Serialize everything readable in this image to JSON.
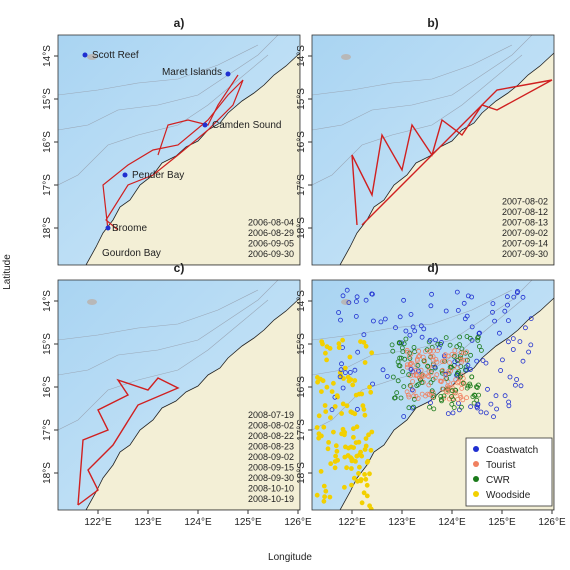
{
  "axes": {
    "x_label": "Longitude",
    "y_label": "Latitude",
    "x_ticks": [
      "122°E",
      "123°E",
      "124°E",
      "125°E",
      "126°E"
    ],
    "y_ticks": [
      "14°S",
      "15°S",
      "16°S",
      "17°S",
      "18°S"
    ]
  },
  "panels": [
    {
      "title": "a)",
      "places": [
        "Scott Reef",
        "Maret Islands",
        "Camden Sound",
        "Pender Bay",
        "Broome",
        "Gourdon Bay"
      ],
      "dates": [
        "2006-08-04",
        "2006-08-29",
        "2006-09-05",
        "2006-09-30"
      ]
    },
    {
      "title": "b)",
      "dates": [
        "2007-08-02",
        "2007-08-12",
        "2007-08-13",
        "2007-09-02",
        "2007-09-14",
        "2007-09-30"
      ]
    },
    {
      "title": "c)",
      "dates": [
        "2008-07-19",
        "2008-08-02",
        "2008-08-22",
        "2008-08-23",
        "2008-09-02",
        "2008-09-15",
        "2008-09-30",
        "2008-10-10",
        "2008-10-19"
      ]
    },
    {
      "title": "d)",
      "legend": [
        {
          "name": "Coastwatch",
          "color": "#1f2fd0"
        },
        {
          "name": "Tourist",
          "color": "#f08060"
        },
        {
          "name": "CWR",
          "color": "#1a7a1a"
        },
        {
          "name": "Woodside",
          "color": "#f2d000"
        }
      ]
    }
  ]
}
